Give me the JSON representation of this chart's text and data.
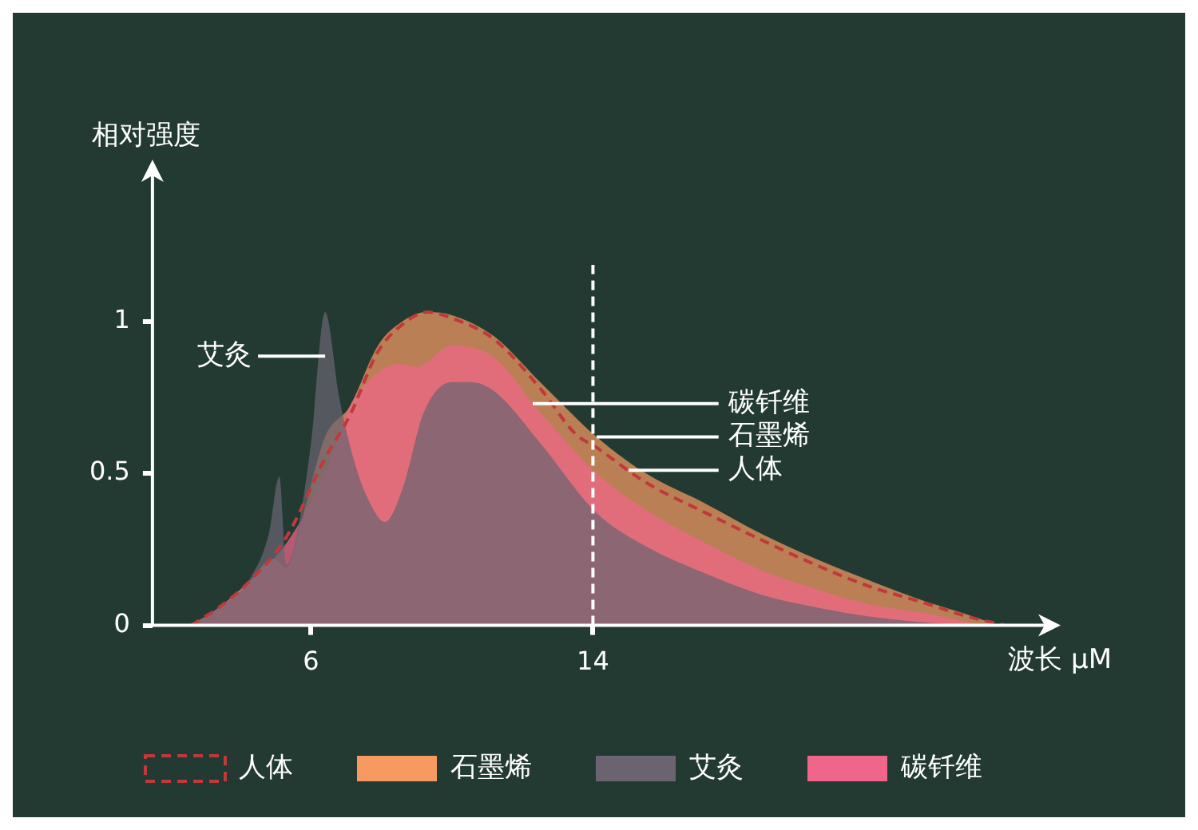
{
  "chart_data": {
    "type": "area",
    "xlabel": "波长 μM",
    "ylabel": "相对强度",
    "xlim": [
      1.5,
      27
    ],
    "xticks": [
      6,
      14
    ],
    "ylim": [
      0,
      1.5
    ],
    "yticks": [
      0,
      0.5,
      1
    ],
    "grid": false,
    "legend": "bottom",
    "marker": "none",
    "series": [
      {
        "name": "人体",
        "color": "#c0393b",
        "type": "line",
        "line_style": "dashed",
        "x": [
          2.6,
          3.4,
          4.3,
          5.3,
          6.4,
          7.1,
          7.9,
          8.6,
          9.3,
          10.0,
          11.2,
          12.5,
          13.5,
          14.1,
          15.5,
          17.2,
          18.8,
          20.3,
          21.8,
          23.4,
          24.6,
          25.7
        ],
        "values": [
          0,
          0.06,
          0.15,
          0.29,
          0.55,
          0.69,
          0.9,
          0.99,
          1.03,
          1.01,
          0.94,
          0.78,
          0.63,
          0.585,
          0.47,
          0.37,
          0.28,
          0.2,
          0.13,
          0.074,
          0.03,
          0
        ]
      },
      {
        "name": "石墨烯",
        "color": "#f79a62",
        "x": [
          2.6,
          3.4,
          4.3,
          4.9,
          5.3,
          5.7,
          6.4,
          7.1,
          7.9,
          8.6,
          9.3,
          10.0,
          11.2,
          12.5,
          14.1,
          15.5,
          17.2,
          18.8,
          20.3,
          21.8,
          23.4,
          24.5,
          25.5
        ],
        "values": [
          0,
          0.06,
          0.15,
          0.22,
          0.19,
          0.33,
          0.62,
          0.72,
          0.92,
          1.0,
          1.03,
          1.02,
          0.95,
          0.8,
          0.62,
          0.5,
          0.4,
          0.3,
          0.22,
          0.15,
          0.08,
          0.04,
          0
        ]
      },
      {
        "name": "艾灸",
        "color": "#6b6470",
        "x": [
          2.6,
          3.4,
          4.3,
          4.8,
          5.1,
          5.3,
          5.6,
          6.0,
          6.4,
          6.8,
          7.2,
          7.6,
          8.1,
          8.6,
          9.2,
          10.0,
          10.5,
          11.2,
          12.5,
          14.1,
          15.5,
          17.2,
          18.8,
          20.3,
          21.8,
          23.4,
          24.5
        ],
        "values": [
          0,
          0.06,
          0.16,
          0.3,
          0.49,
          0.2,
          0.3,
          0.6,
          1.03,
          0.75,
          0.55,
          0.42,
          0.34,
          0.45,
          0.7,
          0.8,
          0.8,
          0.77,
          0.6,
          0.37,
          0.26,
          0.17,
          0.1,
          0.06,
          0.03,
          0.01,
          0
        ]
      },
      {
        "name": "碳钎维",
        "color": "#f0668a",
        "x": [
          2.6,
          3.4,
          4.3,
          5.3,
          6.4,
          7.1,
          7.6,
          8.0,
          8.5,
          9.0,
          10.0,
          11.2,
          12.5,
          14.1,
          15.5,
          17.2,
          18.8,
          20.3,
          21.8,
          23.4,
          25.0
        ],
        "values": [
          0,
          0.06,
          0.15,
          0.27,
          0.5,
          0.72,
          0.8,
          0.84,
          0.86,
          0.85,
          0.92,
          0.88,
          0.7,
          0.5,
          0.38,
          0.27,
          0.18,
          0.12,
          0.07,
          0.04,
          0
        ]
      }
    ],
    "ref_lines": [
      {
        "axis": "x",
        "value": 14,
        "color": "#ffffff",
        "line_style": "dashed"
      }
    ]
  }
}
